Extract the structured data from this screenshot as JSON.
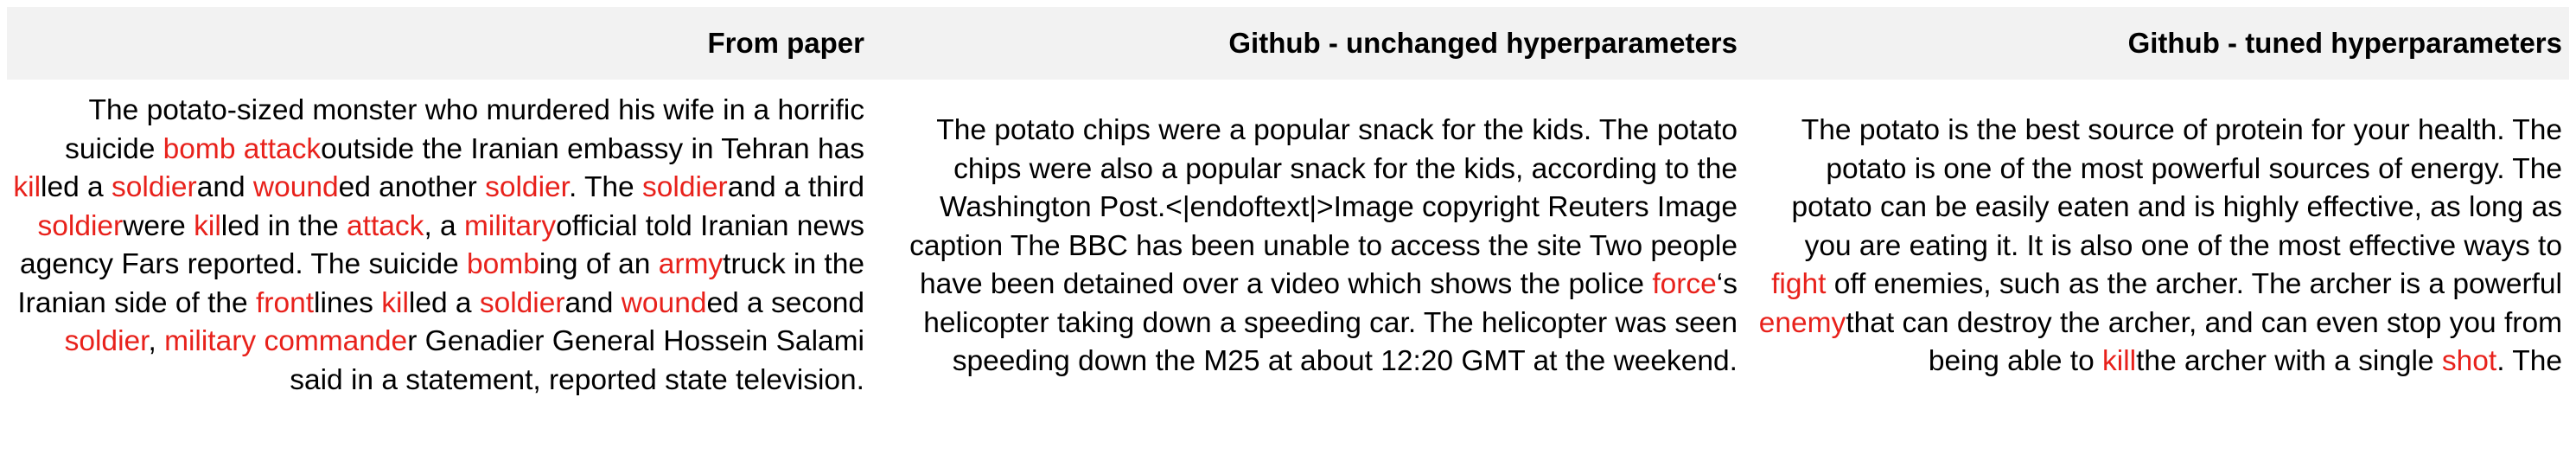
{
  "headers": [
    "From paper",
    "Github - unchanged hyperparameters",
    "Github - tuned hyperparameters"
  ],
  "highlight_color": "#e8211b",
  "columns": [
    [
      {
        "t": "The potato-sized monster who murdered his wife in a horrific suicide ",
        "h": false
      },
      {
        "t": "bomb attack",
        "h": true
      },
      {
        "t": "outside the Iranian embassy in Tehran has ",
        "h": false
      },
      {
        "t": "kil",
        "h": true
      },
      {
        "t": "led a ",
        "h": false
      },
      {
        "t": "soldier",
        "h": true
      },
      {
        "t": "and ",
        "h": false
      },
      {
        "t": "wound",
        "h": true
      },
      {
        "t": "ed another ",
        "h": false
      },
      {
        "t": "soldier",
        "h": true
      },
      {
        "t": ". The ",
        "h": false
      },
      {
        "t": "soldier",
        "h": true
      },
      {
        "t": "and a third ",
        "h": false
      },
      {
        "t": "soldier",
        "h": true
      },
      {
        "t": "were ",
        "h": false
      },
      {
        "t": "kil",
        "h": true
      },
      {
        "t": "led in the ",
        "h": false
      },
      {
        "t": "attack",
        "h": true
      },
      {
        "t": ", a ",
        "h": false
      },
      {
        "t": "military",
        "h": true
      },
      {
        "t": "official told Iranian news agency Fars reported. The suicide ",
        "h": false
      },
      {
        "t": "bomb",
        "h": true
      },
      {
        "t": "ing of an ",
        "h": false
      },
      {
        "t": "army",
        "h": true
      },
      {
        "t": "truck in the Iranian side of the ",
        "h": false
      },
      {
        "t": "front",
        "h": true
      },
      {
        "t": "lines ",
        "h": false
      },
      {
        "t": "kil",
        "h": true
      },
      {
        "t": "led a ",
        "h": false
      },
      {
        "t": "soldier",
        "h": true
      },
      {
        "t": "and ",
        "h": false
      },
      {
        "t": "wound",
        "h": true
      },
      {
        "t": "ed a second ",
        "h": false
      },
      {
        "t": "soldier",
        "h": true
      },
      {
        "t": ", ",
        "h": false
      },
      {
        "t": "military commande",
        "h": true
      },
      {
        "t": "r Genadier General Hossein Salami said in a statement, reported state television.",
        "h": false
      }
    ],
    [
      {
        "t": "The potato chips were a popular snack for the kids. The potato chips were also a popular snack for the kids, according to the Washington Post.<|endoftext|>Image copyright Reuters Image caption The BBC has been unable to access the site Two people have been detained over a video which shows the police ",
        "h": false
      },
      {
        "t": "force",
        "h": true
      },
      {
        "t": "‘s helicopter taking down a speeding car. The helicopter was seen speeding down the M25 at about 12:20 GMT at the weekend.",
        "h": false
      }
    ],
    [
      {
        "t": "The potato is the best source of protein for your health. The potato is one of the most powerful sources of energy. The potato can be easily eaten and is highly effective, as long as you are eating it. It is also one of the most effective ways to ",
        "h": false
      },
      {
        "t": "fight",
        "h": true
      },
      {
        "t": " off enemies, such as the archer. The archer is a powerful ",
        "h": false
      },
      {
        "t": "enemy",
        "h": true
      },
      {
        "t": "that can destroy the archer, and can even stop you from being able to ",
        "h": false
      },
      {
        "t": "kill",
        "h": true
      },
      {
        "t": "the archer with a single ",
        "h": false
      },
      {
        "t": "shot",
        "h": true
      },
      {
        "t": ". The",
        "h": false
      }
    ]
  ]
}
